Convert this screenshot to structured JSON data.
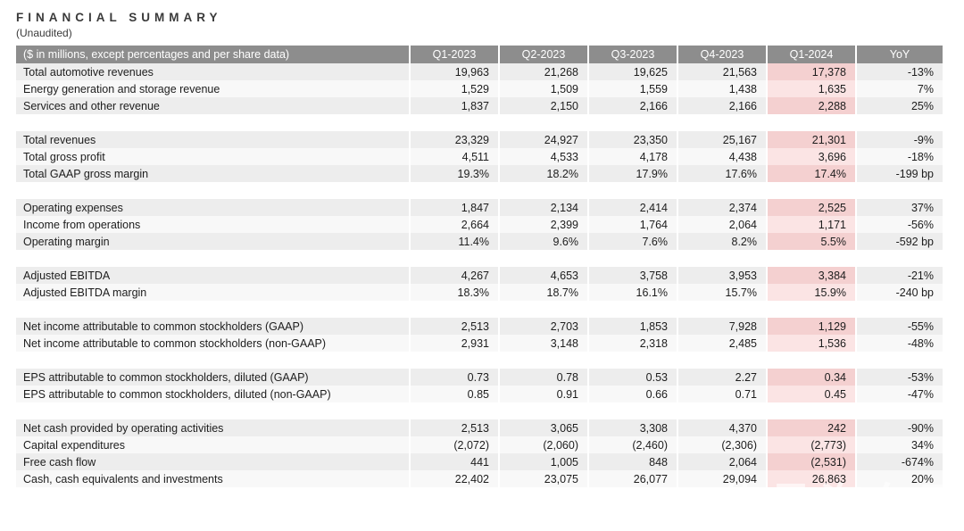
{
  "title": "FINANCIAL SUMMARY",
  "subtitle": "(Unaudited)",
  "watermark": {
    "text": "传号汽车网"
  },
  "colors": {
    "header_bg": "#8d8d8d",
    "header_text": "#ffffff",
    "stripe_dark": "#ededed",
    "stripe_light": "#f8f8f8",
    "highlight_dark": "#f4d0d0",
    "highlight_light": "#fbe4e4",
    "text": "#1d1d1d"
  },
  "table": {
    "header": [
      "($ in millions, except percentages and per share data)",
      "Q1-2023",
      "Q2-2023",
      "Q3-2023",
      "Q4-2023",
      "Q1-2024",
      "YoY"
    ],
    "highlight_column": "Q1-2024",
    "sections": [
      {
        "rows": [
          {
            "label": "Total automotive revenues",
            "values": [
              "19,963",
              "21,268",
              "19,625",
              "21,563",
              "17,378",
              "-13%"
            ]
          },
          {
            "label": "Energy generation and storage revenue",
            "values": [
              "1,529",
              "1,509",
              "1,559",
              "1,438",
              "1,635",
              "7%"
            ]
          },
          {
            "label": "Services and other revenue",
            "values": [
              "1,837",
              "2,150",
              "2,166",
              "2,166",
              "2,288",
              "25%"
            ]
          }
        ]
      },
      {
        "rows": [
          {
            "label": "Total revenues",
            "values": [
              "23,329",
              "24,927",
              "23,350",
              "25,167",
              "21,301",
              "-9%"
            ]
          },
          {
            "label": "Total gross profit",
            "values": [
              "4,511",
              "4,533",
              "4,178",
              "4,438",
              "3,696",
              "-18%"
            ]
          },
          {
            "label": "Total GAAP gross margin",
            "values": [
              "19.3%",
              "18.2%",
              "17.9%",
              "17.6%",
              "17.4%",
              "-199 bp"
            ]
          }
        ]
      },
      {
        "rows": [
          {
            "label": "Operating expenses",
            "values": [
              "1,847",
              "2,134",
              "2,414",
              "2,374",
              "2,525",
              "37%"
            ]
          },
          {
            "label": "Income from operations",
            "values": [
              "2,664",
              "2,399",
              "1,764",
              "2,064",
              "1,171",
              "-56%"
            ]
          },
          {
            "label": "Operating margin",
            "values": [
              "11.4%",
              "9.6%",
              "7.6%",
              "8.2%",
              "5.5%",
              "-592 bp"
            ]
          }
        ]
      },
      {
        "rows": [
          {
            "label": "Adjusted EBITDA",
            "values": [
              "4,267",
              "4,653",
              "3,758",
              "3,953",
              "3,384",
              "-21%"
            ]
          },
          {
            "label": "Adjusted EBITDA margin",
            "values": [
              "18.3%",
              "18.7%",
              "16.1%",
              "15.7%",
              "15.9%",
              "-240 bp"
            ]
          }
        ]
      },
      {
        "rows": [
          {
            "label": "Net income attributable to common stockholders (GAAP)",
            "values": [
              "2,513",
              "2,703",
              "1,853",
              "7,928",
              "1,129",
              "-55%"
            ]
          },
          {
            "label": "Net income attributable to common stockholders (non-GAAP)",
            "values": [
              "2,931",
              "3,148",
              "2,318",
              "2,485",
              "1,536",
              "-48%"
            ]
          }
        ]
      },
      {
        "rows": [
          {
            "label": "EPS attributable to common stockholders, diluted (GAAP)",
            "values": [
              "0.73",
              "0.78",
              "0.53",
              "2.27",
              "0.34",
              "-53%"
            ]
          },
          {
            "label": "EPS attributable to common stockholders, diluted (non-GAAP)",
            "values": [
              "0.85",
              "0.91",
              "0.66",
              "0.71",
              "0.45",
              "-47%"
            ]
          }
        ]
      },
      {
        "rows": [
          {
            "label": "Net cash provided by operating activities",
            "values": [
              "2,513",
              "3,065",
              "3,308",
              "4,370",
              "242",
              "-90%"
            ]
          },
          {
            "label": "Capital expenditures",
            "values": [
              "(2,072)",
              "(2,060)",
              "(2,460)",
              "(2,306)",
              "(2,773)",
              "34%"
            ]
          },
          {
            "label": "Free cash flow",
            "values": [
              "441",
              "1,005",
              "848",
              "2,064",
              "(2,531)",
              "-674%"
            ]
          },
          {
            "label": "Cash, cash equivalents and investments",
            "values": [
              "22,402",
              "23,075",
              "26,077",
              "29,094",
              "26,863",
              "20%"
            ]
          }
        ]
      }
    ]
  }
}
